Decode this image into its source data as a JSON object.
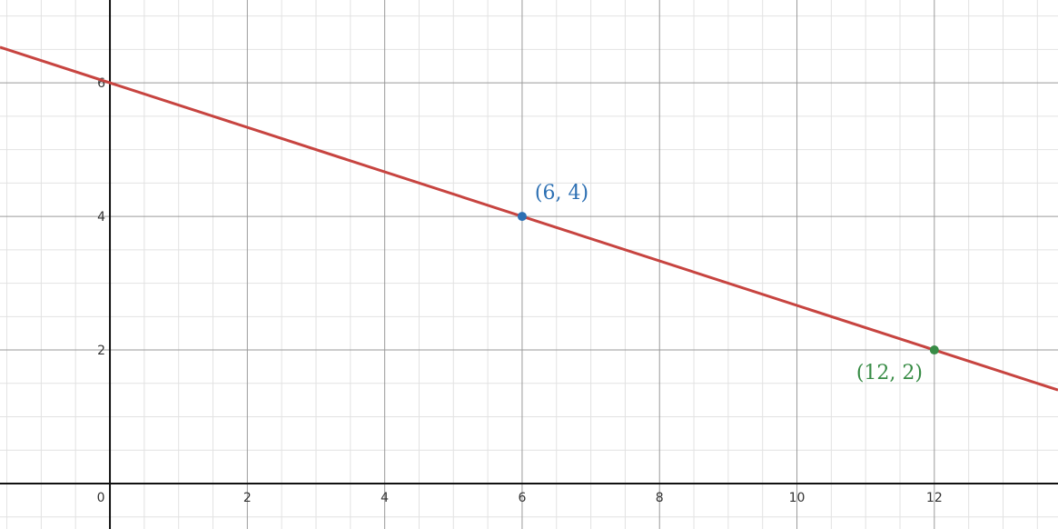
{
  "chart_data": {
    "type": "line",
    "title": "",
    "xlabel": "",
    "ylabel": "",
    "xlim": [
      -1.6,
      13.8
    ],
    "ylim": [
      -0.68,
      7.24
    ],
    "grid": true,
    "major_step": 2,
    "minor_step": 0.5,
    "x_ticks": [
      "0",
      "2",
      "4",
      "6",
      "8",
      "10",
      "12"
    ],
    "y_ticks": [
      "2",
      "4",
      "6"
    ],
    "series": [
      {
        "equation": "y = 6 - x/3",
        "slope": -0.3333,
        "intercept": 6,
        "color": "#c74440"
      }
    ],
    "points": [
      {
        "x": 6,
        "y": 4,
        "label": "(6, 4)",
        "color": "#2d70b3"
      },
      {
        "x": 12,
        "y": 2,
        "label": "(12, 2)",
        "color": "#388c46"
      }
    ]
  }
}
